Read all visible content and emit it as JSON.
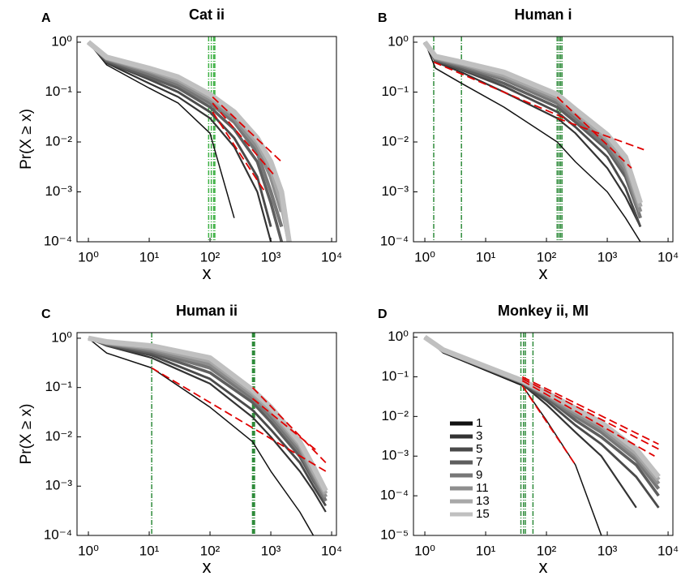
{
  "chart_data": [
    {
      "type": "line",
      "panel_label": "A",
      "title": "Cat ii",
      "xlabel": "x",
      "ylabel": "Pr(X ≥ x)",
      "xscale": "log",
      "yscale": "log",
      "xlim": [
        0.65,
        12000
      ],
      "ylim": [
        0.0001,
        1.3
      ],
      "xticks": [
        {
          "value": 1,
          "label": "10⁰"
        },
        {
          "value": 10,
          "label": "10¹"
        },
        {
          "value": 100,
          "label": "10²"
        },
        {
          "value": 1000,
          "label": "10³"
        },
        {
          "value": 10000,
          "label": "10⁴"
        }
      ],
      "yticks": [
        {
          "value": 0.0001,
          "label": "10⁻⁴"
        },
        {
          "value": 0.001,
          "label": "10⁻³"
        },
        {
          "value": 0.01,
          "label": "10⁻²"
        },
        {
          "value": 0.1,
          "label": "10⁻¹"
        },
        {
          "value": 1,
          "label": "10⁰"
        }
      ],
      "x": [
        1,
        2,
        10,
        30,
        100,
        250,
        600,
        1000,
        1500,
        2000
      ],
      "series": [
        {
          "color": "#111111",
          "values": [
            1,
            0.35,
            0.12,
            0.06,
            0.015,
            0.0003,
            null,
            null,
            null,
            null
          ]
        },
        {
          "color": "#333333",
          "values": [
            1,
            0.38,
            0.15,
            0.08,
            0.03,
            0.008,
            0.001,
            0.0001,
            null,
            null
          ]
        },
        {
          "color": "#4a4a4a",
          "values": [
            1,
            0.4,
            0.18,
            0.1,
            0.04,
            0.012,
            0.002,
            0.0002,
            null,
            null
          ]
        },
        {
          "color": "#5e5e5e",
          "values": [
            1,
            0.42,
            0.2,
            0.12,
            0.05,
            0.018,
            0.004,
            0.0006,
            0.0001,
            null
          ]
        },
        {
          "color": "#777777",
          "values": [
            1,
            0.45,
            0.23,
            0.14,
            0.06,
            0.025,
            0.006,
            0.001,
            0.0002,
            null
          ]
        },
        {
          "color": "#8e8e8e",
          "values": [
            1,
            0.47,
            0.26,
            0.16,
            0.07,
            0.03,
            0.008,
            0.002,
            0.0004,
            null
          ]
        },
        {
          "color": "#a8a8a8",
          "values": [
            1,
            0.49,
            0.28,
            0.18,
            0.08,
            0.035,
            0.01,
            0.003,
            0.0006,
            0.0001
          ]
        },
        {
          "color": "#c0c0c0",
          "values": [
            1,
            0.5,
            0.3,
            0.2,
            0.09,
            0.04,
            0.012,
            0.004,
            0.001,
            0.0001
          ]
        }
      ],
      "fit_color": "#e00000",
      "fits": [
        {
          "x": [
            110,
            1500
          ],
          "values": [
            0.08,
            0.004
          ]
        },
        {
          "x": [
            110,
            1200
          ],
          "values": [
            0.06,
            0.002
          ]
        },
        {
          "x": [
            110,
            800
          ],
          "values": [
            0.04,
            0.001
          ]
        }
      ],
      "xmin_color": "#3cb043",
      "xmin_lines": [
        95,
        105,
        115,
        120
      ]
    },
    {
      "type": "line",
      "panel_label": "B",
      "title": "Human i",
      "xlabel": "x",
      "xscale": "log",
      "yscale": "log",
      "xlim": [
        0.65,
        12000
      ],
      "ylim": [
        0.0001,
        1.3
      ],
      "xticks": [
        {
          "value": 1,
          "label": "10⁰"
        },
        {
          "value": 10,
          "label": "10¹"
        },
        {
          "value": 100,
          "label": "10²"
        },
        {
          "value": 1000,
          "label": "10³"
        },
        {
          "value": 10000,
          "label": "10⁴"
        }
      ],
      "yticks": [
        {
          "value": 0.0001,
          "label": "10⁻⁴"
        },
        {
          "value": 0.001,
          "label": "10⁻³"
        },
        {
          "value": 0.01,
          "label": "10⁻²"
        },
        {
          "value": 0.1,
          "label": "10⁻¹"
        },
        {
          "value": 1,
          "label": "10⁰"
        }
      ],
      "x": [
        1,
        1.5,
        4,
        20,
        150,
        300,
        1000,
        2000,
        3500
      ],
      "series": [
        {
          "color": "#111111",
          "values": [
            1,
            0.3,
            0.15,
            0.05,
            0.01,
            0.004,
            0.001,
            0.0003,
            0.0001
          ]
        },
        {
          "color": "#333333",
          "values": [
            1,
            0.4,
            0.25,
            0.1,
            0.03,
            0.015,
            0.003,
            0.0008,
            0.0002
          ]
        },
        {
          "color": "#4a4a4a",
          "values": [
            1,
            0.42,
            0.28,
            0.13,
            0.04,
            0.02,
            0.005,
            0.0012,
            0.0002
          ]
        },
        {
          "color": "#5e5e5e",
          "values": [
            1,
            0.44,
            0.3,
            0.15,
            0.05,
            0.025,
            0.007,
            0.002,
            0.0003
          ]
        },
        {
          "color": "#777777",
          "values": [
            1,
            0.46,
            0.33,
            0.18,
            0.06,
            0.03,
            0.008,
            0.0025,
            0.0003
          ]
        },
        {
          "color": "#8e8e8e",
          "values": [
            1,
            0.48,
            0.36,
            0.2,
            0.07,
            0.035,
            0.01,
            0.003,
            0.0004
          ]
        },
        {
          "color": "#a8a8a8",
          "values": [
            1,
            0.5,
            0.38,
            0.22,
            0.08,
            0.04,
            0.012,
            0.004,
            0.0005
          ]
        },
        {
          "color": "#c0c0c0",
          "values": [
            1,
            0.52,
            0.4,
            0.25,
            0.09,
            0.045,
            0.014,
            0.005,
            0.0006
          ]
        }
      ],
      "fit_color": "#e00000",
      "fits": [
        {
          "x": [
            150,
            4000
          ],
          "values": [
            0.03,
            0.007
          ]
        },
        {
          "x": [
            1.4,
            200
          ],
          "values": [
            0.4,
            0.03
          ]
        },
        {
          "x": [
            150,
            2500
          ],
          "values": [
            0.08,
            0.003
          ]
        }
      ],
      "xmin_color": "#2e8b3a",
      "xmin_lines": [
        1.4,
        4,
        150,
        160,
        170,
        180
      ]
    },
    {
      "type": "line",
      "panel_label": "C",
      "title": "Human ii",
      "xlabel": "x",
      "ylabel": "Pr(X ≥ x)",
      "xscale": "log",
      "yscale": "log",
      "xlim": [
        0.65,
        12000
      ],
      "ylim": [
        0.0001,
        1.3
      ],
      "xticks": [
        {
          "value": 1,
          "label": "10⁰"
        },
        {
          "value": 10,
          "label": "10¹"
        },
        {
          "value": 100,
          "label": "10²"
        },
        {
          "value": 1000,
          "label": "10³"
        },
        {
          "value": 10000,
          "label": "10⁴"
        }
      ],
      "yticks": [
        {
          "value": 0.0001,
          "label": "10⁻⁴"
        },
        {
          "value": 0.001,
          "label": "10⁻³"
        },
        {
          "value": 0.01,
          "label": "10⁻²"
        },
        {
          "value": 0.1,
          "label": "10⁻¹"
        },
        {
          "value": 1,
          "label": "10⁰"
        }
      ],
      "x": [
        1,
        2,
        11,
        100,
        500,
        1000,
        3000,
        5000,
        8000
      ],
      "series": [
        {
          "color": "#111111",
          "values": [
            1,
            0.5,
            0.25,
            0.04,
            0.008,
            0.002,
            0.0003,
            0.0001,
            null
          ]
        },
        {
          "color": "#333333",
          "values": [
            1,
            0.7,
            0.4,
            0.12,
            0.025,
            0.01,
            0.002,
            0.0008,
            0.0003
          ]
        },
        {
          "color": "#4a4a4a",
          "values": [
            1,
            0.72,
            0.45,
            0.15,
            0.035,
            0.014,
            0.003,
            0.001,
            0.0004
          ]
        },
        {
          "color": "#5e5e5e",
          "values": [
            1,
            0.75,
            0.5,
            0.2,
            0.05,
            0.02,
            0.004,
            0.0013,
            0.0005
          ]
        },
        {
          "color": "#777777",
          "values": [
            1,
            0.78,
            0.55,
            0.25,
            0.06,
            0.025,
            0.005,
            0.0015,
            0.0005
          ]
        },
        {
          "color": "#8e8e8e",
          "values": [
            1,
            0.8,
            0.6,
            0.3,
            0.07,
            0.03,
            0.006,
            0.0018,
            0.0006
          ]
        },
        {
          "color": "#a8a8a8",
          "values": [
            1,
            0.82,
            0.65,
            0.35,
            0.08,
            0.035,
            0.007,
            0.002,
            0.0007
          ]
        },
        {
          "color": "#c0c0c0",
          "values": [
            1,
            0.85,
            0.7,
            0.4,
            0.09,
            0.04,
            0.008,
            0.0025,
            0.0008
          ]
        }
      ],
      "fit_color": "#e00000",
      "fits": [
        {
          "x": [
            11,
            8000
          ],
          "values": [
            0.25,
            0.002
          ]
        },
        {
          "x": [
            500,
            8000
          ],
          "values": [
            0.1,
            0.003
          ]
        },
        {
          "x": [
            500,
            6000
          ],
          "values": [
            0.06,
            0.005
          ]
        }
      ],
      "xmin_color": "#2e8b3a",
      "xmin_lines": [
        11,
        500,
        520,
        540
      ]
    },
    {
      "type": "line",
      "panel_label": "D",
      "title": "Monkey ii, MI",
      "xlabel": "x",
      "xscale": "log",
      "yscale": "log",
      "xlim": [
        0.65,
        12000
      ],
      "ylim": [
        1e-05,
        1.3
      ],
      "legend": "lower left",
      "xticks": [
        {
          "value": 1,
          "label": "10⁰"
        },
        {
          "value": 10,
          "label": "10¹"
        },
        {
          "value": 100,
          "label": "10²"
        },
        {
          "value": 1000,
          "label": "10³"
        },
        {
          "value": 10000,
          "label": "10⁴"
        }
      ],
      "yticks": [
        {
          "value": 1e-05,
          "label": "10⁻⁵"
        },
        {
          "value": 0.0001,
          "label": "10⁻⁴"
        },
        {
          "value": 0.001,
          "label": "10⁻³"
        },
        {
          "value": 0.01,
          "label": "10⁻²"
        },
        {
          "value": 0.1,
          "label": "10⁻¹"
        },
        {
          "value": 1,
          "label": "10⁰"
        }
      ],
      "x": [
        1,
        2,
        40,
        100,
        300,
        800,
        3000,
        7000
      ],
      "series": [
        {
          "name": "1",
          "color": "#111111",
          "values": [
            1,
            0.4,
            0.06,
            0.008,
            0.0006,
            1e-05,
            null,
            null
          ]
        },
        {
          "name": "3",
          "color": "#333333",
          "values": [
            1,
            0.42,
            0.065,
            0.02,
            0.004,
            0.001,
            5e-05,
            null
          ]
        },
        {
          "name": "5",
          "color": "#4a4a4a",
          "values": [
            1,
            0.43,
            0.067,
            0.025,
            0.006,
            0.002,
            0.0003,
            5e-05
          ]
        },
        {
          "name": "7",
          "color": "#5e5e5e",
          "values": [
            1,
            0.44,
            0.07,
            0.03,
            0.008,
            0.003,
            0.0006,
            0.0001
          ]
        },
        {
          "name": "9",
          "color": "#777777",
          "values": [
            1,
            0.45,
            0.072,
            0.033,
            0.01,
            0.004,
            0.0008,
            0.00015
          ]
        },
        {
          "name": "11",
          "color": "#8e8e8e",
          "values": [
            1,
            0.46,
            0.075,
            0.035,
            0.012,
            0.005,
            0.001,
            0.0002
          ]
        },
        {
          "name": "13",
          "color": "#a8a8a8",
          "values": [
            1,
            0.47,
            0.078,
            0.038,
            0.014,
            0.006,
            0.0012,
            0.00025
          ]
        },
        {
          "name": "15",
          "color": "#c0c0c0",
          "values": [
            1,
            0.48,
            0.08,
            0.04,
            0.016,
            0.007,
            0.0015,
            0.0003
          ]
        }
      ],
      "fit_color": "#e00000",
      "fits": [
        {
          "x": [
            40,
            7000
          ],
          "values": [
            0.09,
            0.0015
          ]
        },
        {
          "x": [
            40,
            7000
          ],
          "values": [
            0.1,
            0.002
          ]
        },
        {
          "x": [
            40,
            300
          ],
          "values": [
            0.06,
            0.0006
          ]
        },
        {
          "x": [
            40,
            6000
          ],
          "values": [
            0.08,
            0.001
          ]
        }
      ],
      "xmin_color": "#2e8b3a",
      "xmin_lines": [
        38,
        42,
        45,
        60
      ]
    }
  ]
}
